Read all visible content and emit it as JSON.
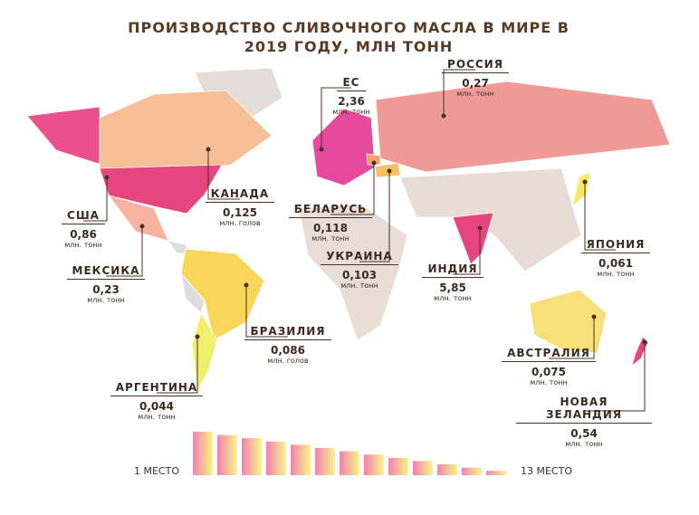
{
  "title": "ПРОИЗВОДСТВО СЛИВОЧНОГО МАСЛА В МИРЕ В 2019 ГОДУ, МЛН ТОНН",
  "countries": [
    {
      "name": "ЕС",
      "value": "2,36",
      "unit": "млн. тонн"
    },
    {
      "name": "РОССИЯ",
      "value": "0,27",
      "unit": "млн. тонн"
    },
    {
      "name": "США",
      "value": "0,86",
      "unit": "млн. тонн"
    },
    {
      "name": "КАНАДА",
      "value": "0,125",
      "unit": "млн. голов"
    },
    {
      "name": "МЕКСИКА",
      "value": "0,23",
      "unit": "млн. тонн"
    },
    {
      "name": "БЕЛАРУСЬ",
      "value": "0,118",
      "unit": "млн. тонн"
    },
    {
      "name": "УКРАИНА",
      "value": "0,103",
      "unit": "млн. тонн"
    },
    {
      "name": "ИНДИЯ",
      "value": "5,85",
      "unit": "млн. тонн"
    },
    {
      "name": "ЯПОНИЯ",
      "value": "0,061",
      "unit": "млн. тонн"
    },
    {
      "name": "БРАЗИЛИЯ",
      "value": "0,086",
      "unit": "млн. голов"
    },
    {
      "name": "АРГЕНТИНА",
      "value": "0,044",
      "unit": "млн. тонн"
    },
    {
      "name": "АВСТРАЛИЯ",
      "value": "0,075",
      "unit": "млн. тонн"
    },
    {
      "name": "НОВАЯ ЗЕЛАНДИЯ",
      "value": "0,54",
      "unit": "млн. тонн"
    }
  ],
  "legend": {
    "start": "1 МЕСТО",
    "end": "13 МЕСТО"
  }
}
